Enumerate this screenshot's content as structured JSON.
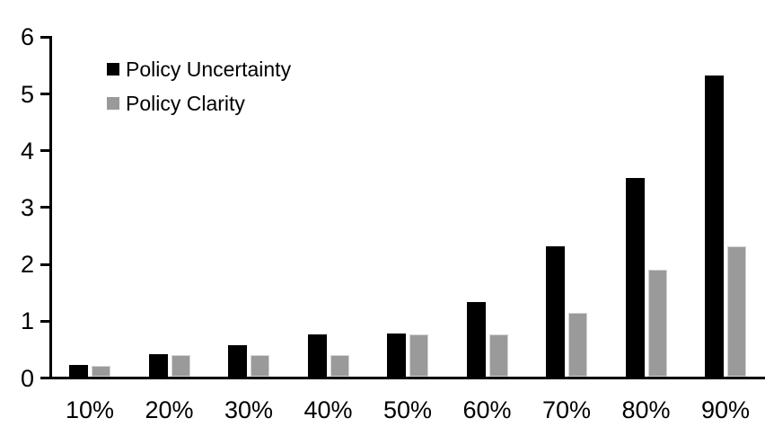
{
  "chart_data": {
    "type": "bar",
    "title": "",
    "xlabel": "",
    "ylabel": "",
    "categories": [
      "10%",
      "20%",
      "30%",
      "40%",
      "50%",
      "60%",
      "70%",
      "80%",
      "90%"
    ],
    "series": [
      {
        "name": "Policy Uncertainty",
        "color": "#000000",
        "values": [
          0.2,
          0.4,
          0.56,
          0.74,
          0.76,
          1.31,
          2.3,
          3.5,
          5.3
        ]
      },
      {
        "name": "Policy Clarity",
        "color": "#9a9a9a",
        "values": [
          0.19,
          0.38,
          0.38,
          0.38,
          0.74,
          0.74,
          1.13,
          1.89,
          2.3
        ]
      }
    ],
    "ylim": [
      0,
      6
    ],
    "yticks": [
      0,
      1,
      2,
      3,
      4,
      5,
      6
    ],
    "grid": false,
    "legend_position": "top-left-inside",
    "axis_color": "#000000",
    "background_color": "#ffffff"
  }
}
